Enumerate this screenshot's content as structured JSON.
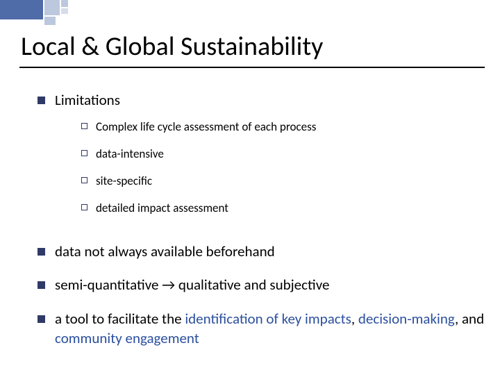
{
  "colors": {
    "bullet_fill": "#2f3a66",
    "bullet_border": "#2f3a66",
    "link": "#2a4f9e",
    "title_rule": "#000000",
    "corner_primary": "#4f6ba8",
    "corner_secondary": "#bcc8dd"
  },
  "typography": {
    "title_fontsize": 38,
    "lvl1_fontsize": 21,
    "lvl2_fontsize": 17,
    "font_family": "Calibri"
  },
  "title": "Local & Global Sustainability",
  "bullets": {
    "b1": {
      "label": "Limitations",
      "sub": {
        "s1": "Complex life cycle assessment of each process",
        "s2": "data-intensive",
        "s3": "site-specific",
        "s4": "detailed impact assessment"
      }
    },
    "b2": {
      "label": "data not always available beforehand"
    },
    "b3": {
      "label": "semi-quantitative → qualitative and subjective"
    },
    "b4": {
      "pre": "a tool to facilitate the ",
      "link1": "identification of key impacts",
      "mid1": ", ",
      "link2": "decision-making",
      "mid2": ", and ",
      "link3": "community engagement"
    }
  }
}
